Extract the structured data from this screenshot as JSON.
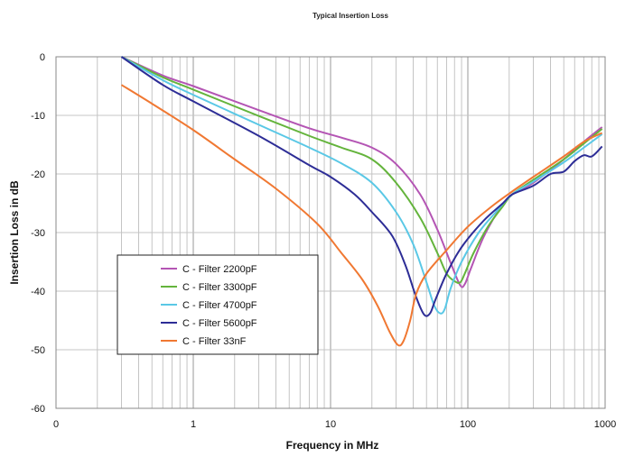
{
  "chart_data": {
    "type": "line",
    "title": "Typical Insertion Loss",
    "xlabel": "Frequency in MHz",
    "ylabel": "Insertion Loss in dB",
    "x_scale": "log",
    "xlim": [
      0.1,
      1000
    ],
    "ylim": [
      -60,
      0
    ],
    "x_ticks": [
      {
        "value": 0.1,
        "label": "0"
      },
      {
        "value": 1,
        "label": "1"
      },
      {
        "value": 10,
        "label": "10"
      },
      {
        "value": 100,
        "label": "100"
      },
      {
        "value": 1000,
        "label": "1000"
      }
    ],
    "y_ticks": [
      {
        "value": 0,
        "label": "0"
      },
      {
        "value": -10,
        "label": "-10"
      },
      {
        "value": -20,
        "label": "-20"
      },
      {
        "value": -30,
        "label": "-30"
      },
      {
        "value": -40,
        "label": "-40"
      },
      {
        "value": -50,
        "label": "-50"
      },
      {
        "value": -60,
        "label": "-60"
      }
    ],
    "grid": true,
    "legend": "lower-left",
    "series": [
      {
        "name": "C - Filter 2200pF",
        "color": "#b455b4",
        "points": [
          [
            0.3,
            0
          ],
          [
            0.6,
            -3.2
          ],
          [
            1,
            -5
          ],
          [
            3,
            -9.1
          ],
          [
            7,
            -12.2
          ],
          [
            12,
            -13.8
          ],
          [
            20,
            -15.5
          ],
          [
            30,
            -18.3
          ],
          [
            45,
            -23.5
          ],
          [
            60,
            -29.5
          ],
          [
            75,
            -35.2
          ],
          [
            88,
            -39
          ],
          [
            95,
            -38.8
          ],
          [
            105,
            -36.2
          ],
          [
            130,
            -30.8
          ],
          [
            170,
            -26
          ],
          [
            210,
            -23.5
          ],
          [
            300,
            -21.5
          ],
          [
            500,
            -17.5
          ],
          [
            700,
            -14.5
          ],
          [
            950,
            -12
          ]
        ]
      },
      {
        "name": "C - Filter 3300pF",
        "color": "#64b43c",
        "points": [
          [
            0.3,
            0
          ],
          [
            0.6,
            -3.5
          ],
          [
            1,
            -5.6
          ],
          [
            3,
            -10.1
          ],
          [
            7,
            -13.5
          ],
          [
            12,
            -15.5
          ],
          [
            20,
            -17.5
          ],
          [
            30,
            -21.5
          ],
          [
            45,
            -27.5
          ],
          [
            60,
            -33.5
          ],
          [
            70,
            -37
          ],
          [
            80,
            -38.3
          ],
          [
            88,
            -38.5
          ],
          [
            95,
            -37
          ],
          [
            110,
            -33.5
          ],
          [
            140,
            -29
          ],
          [
            180,
            -25.5
          ],
          [
            210,
            -23.5
          ],
          [
            300,
            -21
          ],
          [
            500,
            -17.5
          ],
          [
            700,
            -14.8
          ],
          [
            950,
            -12.3
          ]
        ]
      },
      {
        "name": "C - Filter 4700pF",
        "color": "#5ac8e6",
        "points": [
          [
            0.3,
            0
          ],
          [
            0.6,
            -4
          ],
          [
            1,
            -6.5
          ],
          [
            3,
            -11.6
          ],
          [
            7,
            -15.5
          ],
          [
            12,
            -18.2
          ],
          [
            20,
            -21.5
          ],
          [
            30,
            -26.5
          ],
          [
            40,
            -32
          ],
          [
            50,
            -38.5
          ],
          [
            57,
            -42.5
          ],
          [
            63,
            -43.8
          ],
          [
            68,
            -43
          ],
          [
            75,
            -39.5
          ],
          [
            90,
            -35
          ],
          [
            120,
            -30
          ],
          [
            160,
            -26.5
          ],
          [
            210,
            -23.5
          ],
          [
            300,
            -21.3
          ],
          [
            500,
            -18
          ],
          [
            700,
            -15.5
          ],
          [
            950,
            -13.2
          ]
        ]
      },
      {
        "name": "C - Filter 5600pF",
        "color": "#2d2d96",
        "points": [
          [
            0.3,
            0
          ],
          [
            0.6,
            -4.8
          ],
          [
            1,
            -7.6
          ],
          [
            3,
            -13.5
          ],
          [
            7,
            -18.5
          ],
          [
            10,
            -20.5
          ],
          [
            15,
            -23.5
          ],
          [
            20,
            -26.5
          ],
          [
            28,
            -30.5
          ],
          [
            35,
            -35.5
          ],
          [
            42,
            -41
          ],
          [
            48,
            -44
          ],
          [
            53,
            -43.8
          ],
          [
            58,
            -41.5
          ],
          [
            70,
            -37
          ],
          [
            90,
            -32.5
          ],
          [
            130,
            -28
          ],
          [
            180,
            -25
          ],
          [
            210,
            -23.5
          ],
          [
            300,
            -22
          ],
          [
            400,
            -20
          ],
          [
            500,
            -19.6
          ],
          [
            600,
            -17.8
          ],
          [
            700,
            -16.8
          ],
          [
            800,
            -17
          ],
          [
            950,
            -15.3
          ]
        ]
      },
      {
        "name": "C - Filter 33nF",
        "color": "#f07832",
        "points": [
          [
            0.3,
            -4.8
          ],
          [
            0.5,
            -8
          ],
          [
            1,
            -12.5
          ],
          [
            2,
            -17.5
          ],
          [
            4,
            -22.5
          ],
          [
            8,
            -28.5
          ],
          [
            12,
            -33.5
          ],
          [
            17,
            -38
          ],
          [
            22,
            -42.5
          ],
          [
            27,
            -47
          ],
          [
            31,
            -49.2
          ],
          [
            34,
            -48.5
          ],
          [
            38,
            -45
          ],
          [
            42,
            -40.5
          ],
          [
            50,
            -37
          ],
          [
            70,
            -33
          ],
          [
            100,
            -29
          ],
          [
            150,
            -25.5
          ],
          [
            210,
            -23
          ],
          [
            300,
            -20.5
          ],
          [
            500,
            -17
          ],
          [
            700,
            -14.5
          ],
          [
            950,
            -13
          ]
        ]
      }
    ]
  }
}
